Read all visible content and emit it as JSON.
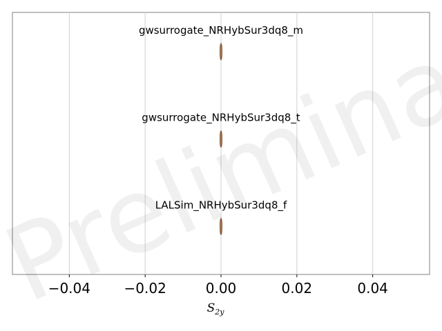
{
  "watermark": "Preliminary",
  "chart_data": {
    "type": "violin",
    "orientation": "horizontal",
    "xlabel": "S",
    "xlabel_subscript": "2y",
    "xlim": [
      -0.055,
      0.055
    ],
    "xticks": [
      -0.04,
      -0.02,
      0.0,
      0.02,
      0.04
    ],
    "xtick_labels": [
      "−0.04",
      "−0.02",
      "0.00",
      "0.02",
      "0.04"
    ],
    "grid": "vertical",
    "series": [
      {
        "name": "gwsurrogate_NRHybSur3dq8_m",
        "center": 0.0,
        "spread": 0.0002
      },
      {
        "name": "gwsurrogate_NRHybSur3dq8_t",
        "center": 0.0,
        "spread": 0.0002
      },
      {
        "name": "LALSim_NRHybSur3dq8_f",
        "center": 0.0,
        "spread": 0.0002
      }
    ],
    "colors": {
      "fill": "#c8a77e",
      "edge": "#8b5a3c",
      "grid": "#d0d0d0",
      "frame": "#808080"
    }
  }
}
